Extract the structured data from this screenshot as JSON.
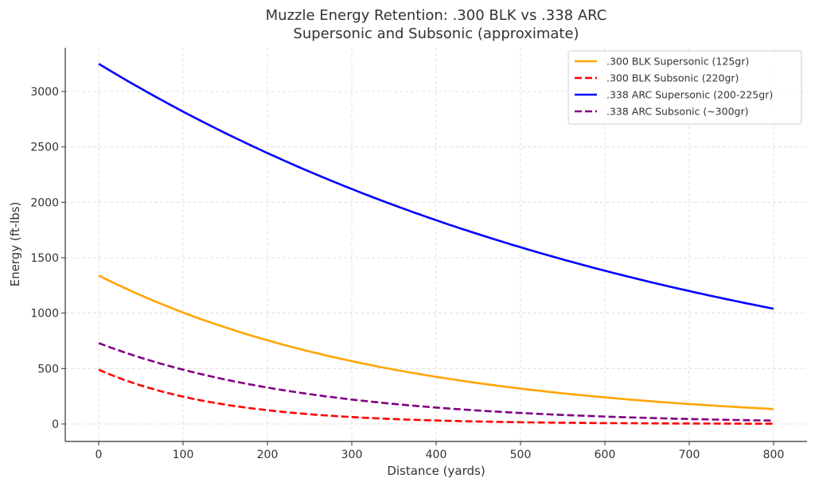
{
  "chart_data": {
    "type": "line",
    "title": "Muzzle Energy Retention: .300 BLK vs .338 ARC",
    "subtitle": "Supersonic and Subsonic (approximate)",
    "xlabel": "Distance (yards)",
    "ylabel": "Energy (ft-lbs)",
    "xlim": [
      -40,
      840
    ],
    "ylim": [
      -160,
      3400
    ],
    "xticks": [
      0,
      100,
      200,
      300,
      400,
      500,
      600,
      700,
      800
    ],
    "xtick_labels": [
      "0",
      "100",
      "200",
      "300",
      "400",
      "500",
      "600",
      "700",
      "800"
    ],
    "yticks": [
      0,
      500,
      1000,
      1500,
      2000,
      2500,
      3000
    ],
    "ytick_labels": [
      "0",
      "500",
      "1000",
      "1500",
      "2000",
      "2500",
      "3000"
    ],
    "grid": true,
    "legend_position": "top-right",
    "x": [
      0,
      100,
      200,
      300,
      400,
      500,
      600,
      700,
      800
    ],
    "series": [
      {
        "name": ".300 BLK Supersonic (125gr)",
        "color": "#FFA500",
        "style": "solid",
        "start": 1340,
        "end": 135,
        "values": [
          1340,
          1010,
          760,
          570,
          430,
          320,
          240,
          180,
          135
        ]
      },
      {
        "name": ".300 BLK Subsonic (220gr)",
        "color": "#FF0000",
        "style": "dashed",
        "start": 490,
        "end": 2,
        "values": [
          490,
          245,
          125,
          63,
          32,
          16,
          8,
          4,
          2
        ]
      },
      {
        "name": ".338 ARC Supersonic (200-225gr)",
        "color": "#0000FF",
        "style": "solid",
        "start": 3250,
        "end": 1040,
        "values": [
          3250,
          2820,
          2450,
          2110,
          1830,
          1590,
          1380,
          1200,
          1040
        ]
      },
      {
        "name": ".338 ARC Subsonic (~300gr)",
        "color": "#800080",
        "style": "dashed",
        "start": 730,
        "end": 30,
        "values": [
          730,
          490,
          330,
          220,
          150,
          100,
          65,
          45,
          30
        ]
      }
    ]
  }
}
